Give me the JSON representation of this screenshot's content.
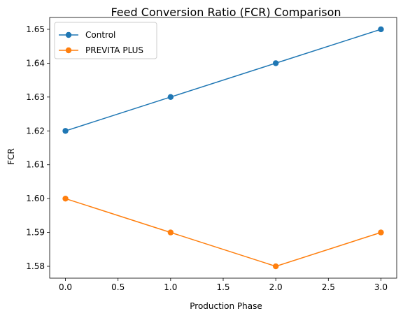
{
  "chart_data": {
    "type": "line",
    "title": "Feed Conversion Ratio (FCR) Comparison",
    "xlabel": "Production Phase",
    "ylabel": "FCR",
    "x": [
      0,
      1,
      2,
      3
    ],
    "xlim": [
      -0.15,
      3.15
    ],
    "ylim": [
      1.5765,
      1.6535
    ],
    "xticks": [
      0.0,
      0.5,
      1.0,
      1.5,
      2.0,
      2.5,
      3.0
    ],
    "xtick_labels": [
      "0.0",
      "0.5",
      "1.0",
      "1.5",
      "2.0",
      "2.5",
      "3.0"
    ],
    "yticks": [
      1.58,
      1.59,
      1.6,
      1.61,
      1.62,
      1.63,
      1.64,
      1.65
    ],
    "ytick_labels": [
      "1.58",
      "1.59",
      "1.60",
      "1.61",
      "1.62",
      "1.63",
      "1.64",
      "1.65"
    ],
    "grid": false,
    "legend_position": "top-left",
    "series": [
      {
        "name": "Control",
        "values": [
          1.62,
          1.63,
          1.64,
          1.65
        ],
        "color": "#1f77b4",
        "marker": "circle"
      },
      {
        "name": "PREVITA PLUS",
        "values": [
          1.6,
          1.59,
          1.58,
          1.59
        ],
        "color": "#ff7f0e",
        "marker": "circle"
      }
    ]
  }
}
